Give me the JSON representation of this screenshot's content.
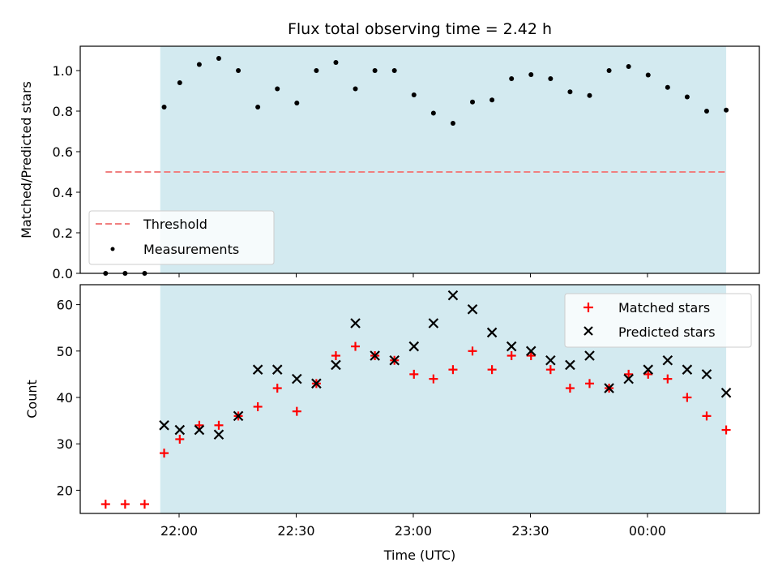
{
  "chart_data": {
    "type": "scatter",
    "title": "Flux total observing time = 2.42 h",
    "xlabel": "Time (UTC)",
    "colors": {
      "shade": "#d3eaf0",
      "threshold": "#f08080",
      "measurements": "#000000",
      "matched": "#ff0000",
      "predicted": "#000000"
    },
    "x_axis": {
      "ticks": [
        {
          "value": "21:59:50",
          "label": "22:00"
        },
        {
          "value": "22:29:50",
          "label": "22:30"
        },
        {
          "value": "22:59:50",
          "label": "23:00"
        },
        {
          "value": "23:29:50",
          "label": "23:30"
        },
        {
          "value": "23:59:50",
          "label": "00:00"
        }
      ]
    },
    "shaded_interval": [
      "21:55",
      "24:20"
    ],
    "times": [
      "21:41",
      "21:46",
      "21:51",
      "21:56",
      "22:00",
      "22:05",
      "22:10",
      "22:15",
      "22:20",
      "22:25",
      "22:30",
      "22:35",
      "22:40",
      "22:45",
      "22:50",
      "22:55",
      "23:00",
      "23:05",
      "23:10",
      "23:15",
      "23:20",
      "23:25",
      "23:30",
      "23:35",
      "23:40",
      "23:45",
      "23:50",
      "23:55",
      "24:00",
      "24:05",
      "24:10",
      "24:15",
      "24:20"
    ],
    "panels": [
      {
        "ylabel": "Matched/Predicted stars",
        "ylim": [
          0,
          1.12
        ],
        "yticks": [
          {
            "value": 0.0,
            "label": "0.0"
          },
          {
            "value": 0.2,
            "label": "0.2"
          },
          {
            "value": 0.4,
            "label": "0.4"
          },
          {
            "value": 0.6,
            "label": "0.6"
          },
          {
            "value": 0.8,
            "label": "0.8"
          },
          {
            "value": 1.0,
            "label": "1.0"
          }
        ],
        "legend": {
          "position": "lower-left",
          "entries": [
            "Threshold",
            "Measurements"
          ]
        },
        "threshold": {
          "name": "Threshold",
          "value": 0.5,
          "x_range": [
            "21:41",
            "24:20"
          ]
        },
        "series": [
          {
            "name": "Measurements",
            "marker": "dot",
            "values": [
              0.0,
              0.0,
              0.0,
              0.82,
              0.94,
              1.03,
              1.06,
              1.0,
              0.82,
              0.91,
              0.84,
              1.0,
              1.04,
              0.91,
              1.0,
              1.0,
              0.88,
              0.79,
              0.74,
              0.845,
              0.855,
              0.96,
              0.98,
              0.96,
              0.895,
              0.877,
              1.0,
              1.02,
              0.978,
              0.917,
              0.87,
              0.8,
              0.805
            ]
          }
        ]
      },
      {
        "ylabel": "Count",
        "ylim": [
          15,
          64.3
        ],
        "yticks": [
          {
            "value": 20,
            "label": "20"
          },
          {
            "value": 30,
            "label": "30"
          },
          {
            "value": 40,
            "label": "40"
          },
          {
            "value": 50,
            "label": "50"
          },
          {
            "value": 60,
            "label": "60"
          }
        ],
        "legend": {
          "position": "top-right",
          "entries": [
            "Matched stars",
            "Predicted stars"
          ]
        },
        "series": [
          {
            "name": "Matched stars",
            "marker": "plus",
            "values": [
              17,
              17,
              17,
              28,
              31,
              34,
              34,
              36,
              38,
              42,
              37,
              43,
              49,
              51,
              49,
              48,
              45,
              44,
              46,
              50,
              46,
              49,
              49,
              46,
              42,
              43,
              42,
              45,
              45,
              44,
              40,
              36,
              33
            ]
          },
          {
            "name": "Predicted stars",
            "marker": "x",
            "values": [
              null,
              null,
              null,
              34,
              33,
              33,
              32,
              36,
              46,
              46,
              44,
              43,
              47,
              56,
              49,
              48,
              51,
              56,
              62,
              59,
              54,
              51,
              50,
              48,
              47,
              49,
              42,
              44,
              46,
              48,
              46,
              45,
              41
            ]
          }
        ]
      }
    ]
  }
}
